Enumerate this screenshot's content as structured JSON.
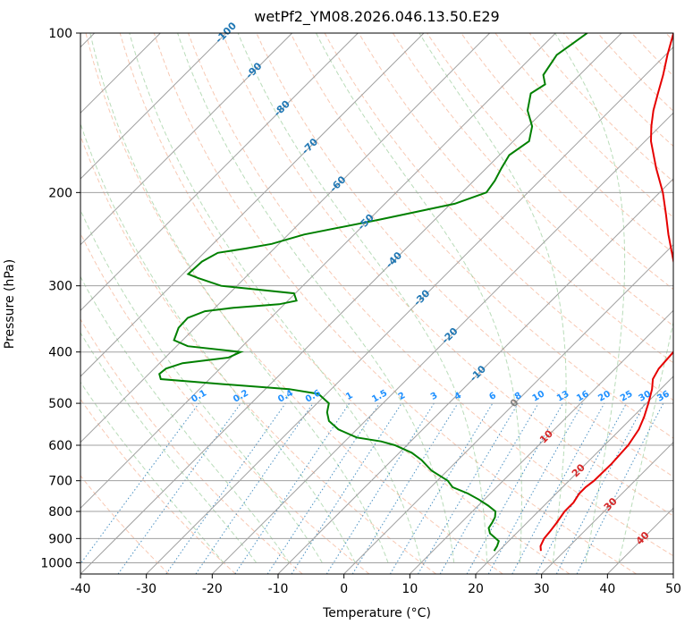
{
  "chart_data": {
    "type": "line",
    "title": "wetPf2_YM08.2026.046.13.50.E29",
    "xlabel": "Temperature (°C)",
    "ylabel": "Pressure (hPa)",
    "xlim": [
      -40,
      50
    ],
    "ylim": [
      1050,
      100
    ],
    "y_scale": "log",
    "grid": true,
    "x_ticks": [
      -40,
      -30,
      -20,
      -10,
      0,
      10,
      20,
      30,
      40,
      50
    ],
    "y_ticks": [
      100,
      200,
      300,
      400,
      500,
      600,
      700,
      800,
      900,
      1000
    ],
    "isotherm_labels": [
      -100,
      -90,
      -80,
      -70,
      -60,
      -50,
      -40,
      -30,
      -20,
      -10,
      0,
      10,
      20,
      30,
      40
    ],
    "mixing_ratio_labels": [
      "0.1",
      "0.2",
      "0.4",
      "0.6",
      "1",
      "1.5",
      "2",
      "3",
      "4",
      "6",
      "8",
      "10",
      "13",
      "16",
      "20",
      "25",
      "30",
      "36"
    ],
    "series": [
      {
        "color": "#e60000",
        "pressure": [
          950,
          930,
          900,
          870,
          840,
          800,
          770,
          740,
          720,
          700,
          650,
          600,
          560,
          530,
          500,
          470,
          450,
          430,
          400,
          380,
          350,
          320,
          300,
          270,
          240,
          220,
          200,
          180,
          160,
          150,
          140,
          130,
          120,
          110,
          100
        ],
        "temperature": [
          26.4,
          25.6,
          25.0,
          24.8,
          24.5,
          24.0,
          24.0,
          23.5,
          23.5,
          23.8,
          23.9,
          23.6,
          22.8,
          21.7,
          20.3,
          18.7,
          17.3,
          16.6,
          16.3,
          15.3,
          12.7,
          9.5,
          7.0,
          2.6,
          -2.3,
          -5.7,
          -9.5,
          -14.2,
          -19.1,
          -21.3,
          -23.4,
          -25.3,
          -27.3,
          -29.7,
          -32.1
        ]
      },
      {
        "color": "#008000",
        "pressure": [
          950,
          930,
          910,
          880,
          860,
          840,
          820,
          800,
          780,
          760,
          740,
          720,
          700,
          670,
          640,
          620,
          600,
          590,
          580,
          560,
          540,
          520,
          500,
          480,
          470,
          460,
          450,
          440,
          430,
          420,
          410,
          400,
          390,
          380,
          360,
          345,
          335,
          330,
          325,
          320,
          310,
          300,
          290,
          285,
          270,
          260,
          255,
          250,
          240,
          225,
          210,
          200,
          190,
          180,
          170,
          160,
          150,
          140,
          130,
          125,
          120,
          110,
          100
        ],
        "dewpoint": [
          19.3,
          19.0,
          18.5,
          16.0,
          15.0,
          14.7,
          14.3,
          13.5,
          11.5,
          9.2,
          6.6,
          3.3,
          1.6,
          -2.4,
          -5.5,
          -8.1,
          -11.8,
          -14.5,
          -18.8,
          -22.8,
          -25.5,
          -27.1,
          -28.2,
          -31.2,
          -36.4,
          -47.3,
          -57.4,
          -58.4,
          -58.2,
          -56.5,
          -50.4,
          -49.4,
          -58.3,
          -61.3,
          -62.5,
          -62.6,
          -61.0,
          -57.2,
          -50.8,
          -48.7,
          -50.2,
          -62.4,
          -67.1,
          -69.2,
          -69.0,
          -67.9,
          -64.3,
          -61.1,
          -57.6,
          -48.4,
          -39.4,
          -36.3,
          -36.8,
          -37.7,
          -38.5,
          -37.6,
          -39.4,
          -42.5,
          -44.6,
          -43.8,
          -45.5,
          -46.5,
          -45.2
        ]
      }
    ]
  }
}
